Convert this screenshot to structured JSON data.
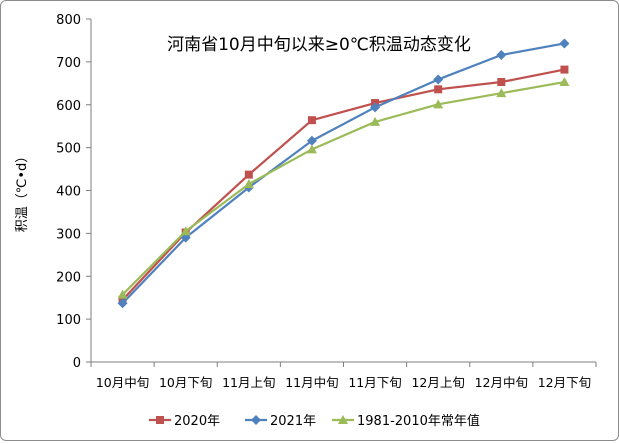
{
  "chart_data": {
    "type": "line",
    "title": "河南省10月中旬以来≥0℃积温动态变化",
    "xlabel": "",
    "ylabel": "积温（℃•d）",
    "categories": [
      "10月中旬",
      "10月下旬",
      "11月上旬",
      "11月中旬",
      "11月下旬",
      "12月上旬",
      "12月中旬",
      "12月下旬"
    ],
    "ylim": [
      0,
      800
    ],
    "yticks": [
      "0",
      "100",
      "200",
      "300",
      "400",
      "500",
      "600",
      "700",
      "800"
    ],
    "grid": false,
    "legend_position": "bottom",
    "series": [
      {
        "name": "2020年",
        "color": "#c0504d",
        "marker": "square",
        "values": [
          145,
          302,
          437,
          564,
          604,
          636,
          653,
          682
        ]
      },
      {
        "name": "2021年",
        "color": "#4f81bd",
        "marker": "diamond",
        "values": [
          137,
          290,
          407,
          516,
          594,
          659,
          716,
          743
        ]
      },
      {
        "name": "1981-2010年常年值",
        "color": "#9bbb59",
        "marker": "triangle",
        "values": [
          157,
          305,
          415,
          496,
          560,
          601,
          627,
          653
        ]
      }
    ]
  }
}
